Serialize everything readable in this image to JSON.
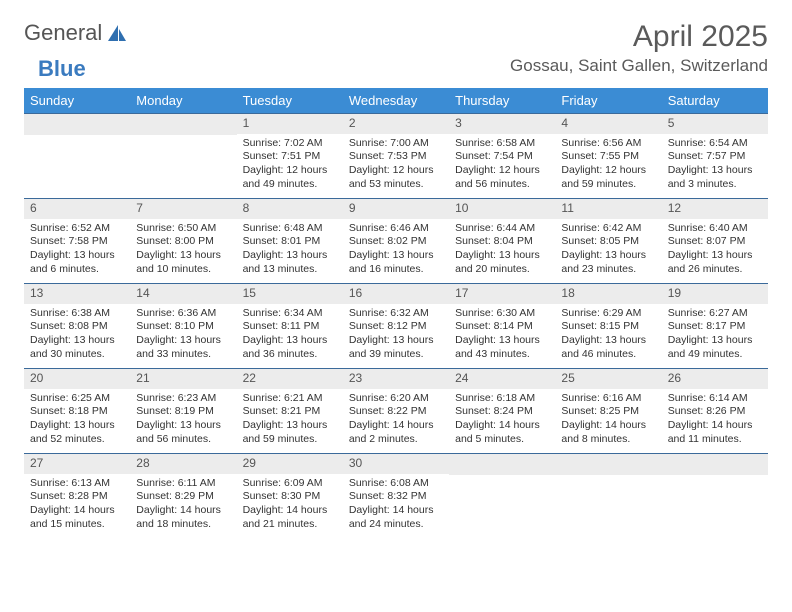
{
  "brand": {
    "part1": "General",
    "part2": "Blue"
  },
  "title": {
    "month": "April 2025",
    "location": "Gossau, Saint Gallen, Switzerland"
  },
  "style": {
    "header_bg": "#3b8cd4",
    "header_fg": "#ffffff",
    "row_border": "#3b6a9a",
    "daynum_bg": "#ececec",
    "daynum_fg": "#555555",
    "body_fg": "#333333",
    "month_fontsize": 30,
    "loc_fontsize": 17,
    "th_fontsize": 13,
    "cell_fontsize": 10.5
  },
  "weekdays": [
    "Sunday",
    "Monday",
    "Tuesday",
    "Wednesday",
    "Thursday",
    "Friday",
    "Saturday"
  ],
  "weeks": [
    [
      null,
      null,
      {
        "n": "1",
        "sr": "Sunrise: 7:02 AM",
        "ss": "Sunset: 7:51 PM",
        "dl": "Daylight: 12 hours and 49 minutes."
      },
      {
        "n": "2",
        "sr": "Sunrise: 7:00 AM",
        "ss": "Sunset: 7:53 PM",
        "dl": "Daylight: 12 hours and 53 minutes."
      },
      {
        "n": "3",
        "sr": "Sunrise: 6:58 AM",
        "ss": "Sunset: 7:54 PM",
        "dl": "Daylight: 12 hours and 56 minutes."
      },
      {
        "n": "4",
        "sr": "Sunrise: 6:56 AM",
        "ss": "Sunset: 7:55 PM",
        "dl": "Daylight: 12 hours and 59 minutes."
      },
      {
        "n": "5",
        "sr": "Sunrise: 6:54 AM",
        "ss": "Sunset: 7:57 PM",
        "dl": "Daylight: 13 hours and 3 minutes."
      }
    ],
    [
      {
        "n": "6",
        "sr": "Sunrise: 6:52 AM",
        "ss": "Sunset: 7:58 PM",
        "dl": "Daylight: 13 hours and 6 minutes."
      },
      {
        "n": "7",
        "sr": "Sunrise: 6:50 AM",
        "ss": "Sunset: 8:00 PM",
        "dl": "Daylight: 13 hours and 10 minutes."
      },
      {
        "n": "8",
        "sr": "Sunrise: 6:48 AM",
        "ss": "Sunset: 8:01 PM",
        "dl": "Daylight: 13 hours and 13 minutes."
      },
      {
        "n": "9",
        "sr": "Sunrise: 6:46 AM",
        "ss": "Sunset: 8:02 PM",
        "dl": "Daylight: 13 hours and 16 minutes."
      },
      {
        "n": "10",
        "sr": "Sunrise: 6:44 AM",
        "ss": "Sunset: 8:04 PM",
        "dl": "Daylight: 13 hours and 20 minutes."
      },
      {
        "n": "11",
        "sr": "Sunrise: 6:42 AM",
        "ss": "Sunset: 8:05 PM",
        "dl": "Daylight: 13 hours and 23 minutes."
      },
      {
        "n": "12",
        "sr": "Sunrise: 6:40 AM",
        "ss": "Sunset: 8:07 PM",
        "dl": "Daylight: 13 hours and 26 minutes."
      }
    ],
    [
      {
        "n": "13",
        "sr": "Sunrise: 6:38 AM",
        "ss": "Sunset: 8:08 PM",
        "dl": "Daylight: 13 hours and 30 minutes."
      },
      {
        "n": "14",
        "sr": "Sunrise: 6:36 AM",
        "ss": "Sunset: 8:10 PM",
        "dl": "Daylight: 13 hours and 33 minutes."
      },
      {
        "n": "15",
        "sr": "Sunrise: 6:34 AM",
        "ss": "Sunset: 8:11 PM",
        "dl": "Daylight: 13 hours and 36 minutes."
      },
      {
        "n": "16",
        "sr": "Sunrise: 6:32 AM",
        "ss": "Sunset: 8:12 PM",
        "dl": "Daylight: 13 hours and 39 minutes."
      },
      {
        "n": "17",
        "sr": "Sunrise: 6:30 AM",
        "ss": "Sunset: 8:14 PM",
        "dl": "Daylight: 13 hours and 43 minutes."
      },
      {
        "n": "18",
        "sr": "Sunrise: 6:29 AM",
        "ss": "Sunset: 8:15 PM",
        "dl": "Daylight: 13 hours and 46 minutes."
      },
      {
        "n": "19",
        "sr": "Sunrise: 6:27 AM",
        "ss": "Sunset: 8:17 PM",
        "dl": "Daylight: 13 hours and 49 minutes."
      }
    ],
    [
      {
        "n": "20",
        "sr": "Sunrise: 6:25 AM",
        "ss": "Sunset: 8:18 PM",
        "dl": "Daylight: 13 hours and 52 minutes."
      },
      {
        "n": "21",
        "sr": "Sunrise: 6:23 AM",
        "ss": "Sunset: 8:19 PM",
        "dl": "Daylight: 13 hours and 56 minutes."
      },
      {
        "n": "22",
        "sr": "Sunrise: 6:21 AM",
        "ss": "Sunset: 8:21 PM",
        "dl": "Daylight: 13 hours and 59 minutes."
      },
      {
        "n": "23",
        "sr": "Sunrise: 6:20 AM",
        "ss": "Sunset: 8:22 PM",
        "dl": "Daylight: 14 hours and 2 minutes."
      },
      {
        "n": "24",
        "sr": "Sunrise: 6:18 AM",
        "ss": "Sunset: 8:24 PM",
        "dl": "Daylight: 14 hours and 5 minutes."
      },
      {
        "n": "25",
        "sr": "Sunrise: 6:16 AM",
        "ss": "Sunset: 8:25 PM",
        "dl": "Daylight: 14 hours and 8 minutes."
      },
      {
        "n": "26",
        "sr": "Sunrise: 6:14 AM",
        "ss": "Sunset: 8:26 PM",
        "dl": "Daylight: 14 hours and 11 minutes."
      }
    ],
    [
      {
        "n": "27",
        "sr": "Sunrise: 6:13 AM",
        "ss": "Sunset: 8:28 PM",
        "dl": "Daylight: 14 hours and 15 minutes."
      },
      {
        "n": "28",
        "sr": "Sunrise: 6:11 AM",
        "ss": "Sunset: 8:29 PM",
        "dl": "Daylight: 14 hours and 18 minutes."
      },
      {
        "n": "29",
        "sr": "Sunrise: 6:09 AM",
        "ss": "Sunset: 8:30 PM",
        "dl": "Daylight: 14 hours and 21 minutes."
      },
      {
        "n": "30",
        "sr": "Sunrise: 6:08 AM",
        "ss": "Sunset: 8:32 PM",
        "dl": "Daylight: 14 hours and 24 minutes."
      },
      null,
      null,
      null
    ]
  ]
}
